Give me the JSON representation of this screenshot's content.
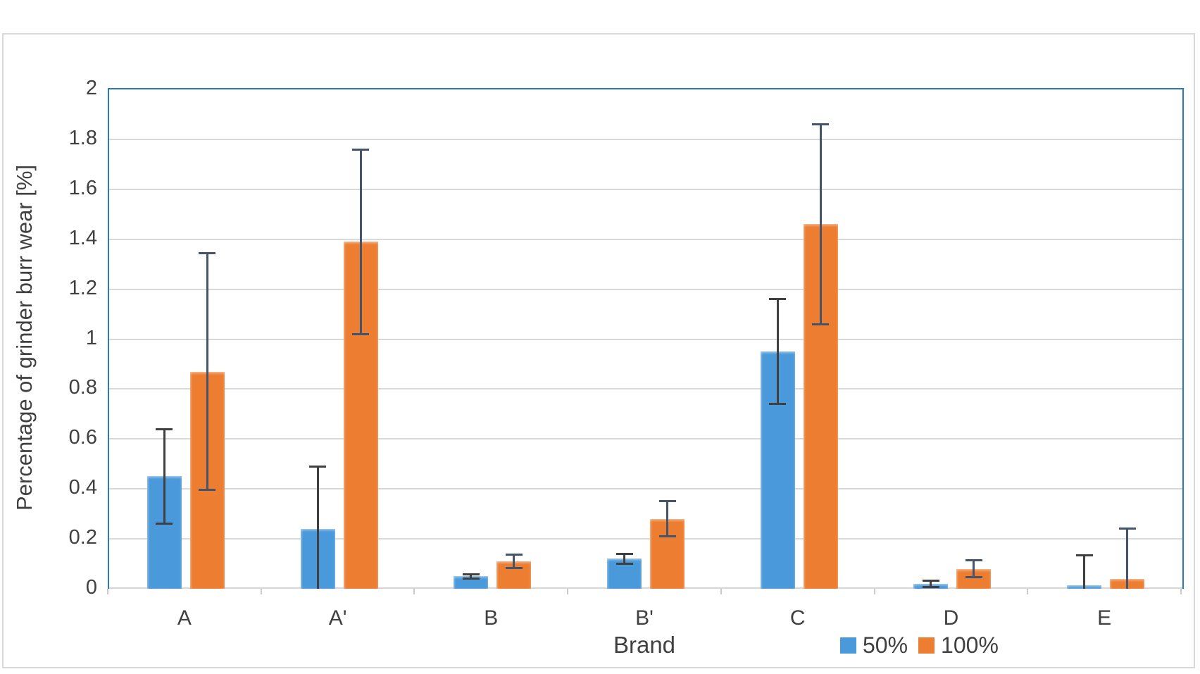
{
  "y_axis": {
    "title": "Percentage of grinder burr wear [%]",
    "tick_labels": [
      "2",
      "1.8",
      "1.6",
      "1.4",
      "1.2",
      "1",
      "0.8",
      "0.6",
      "0.4",
      "0.2",
      "0"
    ],
    "min": 0,
    "max": 2,
    "step": 0.2
  },
  "x_axis": {
    "title": "Brand"
  },
  "legend": {
    "items": [
      {
        "label": "50%",
        "color": "#4A99DA"
      },
      {
        "label": "100%",
        "color": "#ED7D31"
      }
    ],
    "position": "bottom-right"
  },
  "colors": {
    "series_50": "#4A99DA",
    "series_100": "#ED7D31",
    "plot_border": "#2B79C2",
    "gridline": "#D9D9D9",
    "error_bar_50": "#404040",
    "error_bar_100": "#44546A",
    "text": "#404040",
    "figure_border": "#D9D9D9"
  },
  "chart_data": {
    "type": "bar",
    "title": "",
    "categories": [
      "A",
      "A'",
      "B",
      "B'",
      "C",
      "D",
      "E"
    ],
    "xlabel": "Brand",
    "ylabel": "Percentage of grinder burr wear [%]",
    "ylim": [
      0,
      2
    ],
    "ytick_step": 0.2,
    "grid": true,
    "legend_position": "bottom-right",
    "error_bars": true,
    "series": [
      {
        "name": "50%",
        "color": "#4A99DA",
        "values": [
          0.45,
          0.24,
          0.05,
          0.12,
          0.95,
          0.02,
          0.015
        ],
        "error": [
          0.19,
          0.25,
          0.008,
          0.02,
          0.21,
          0.012,
          0.12
        ]
      },
      {
        "name": "100%",
        "color": "#ED7D31",
        "values": [
          0.87,
          1.39,
          0.11,
          0.28,
          1.46,
          0.08,
          0.04
        ],
        "error": [
          0.475,
          0.37,
          0.028,
          0.07,
          0.4,
          0.033,
          0.2
        ]
      }
    ]
  }
}
